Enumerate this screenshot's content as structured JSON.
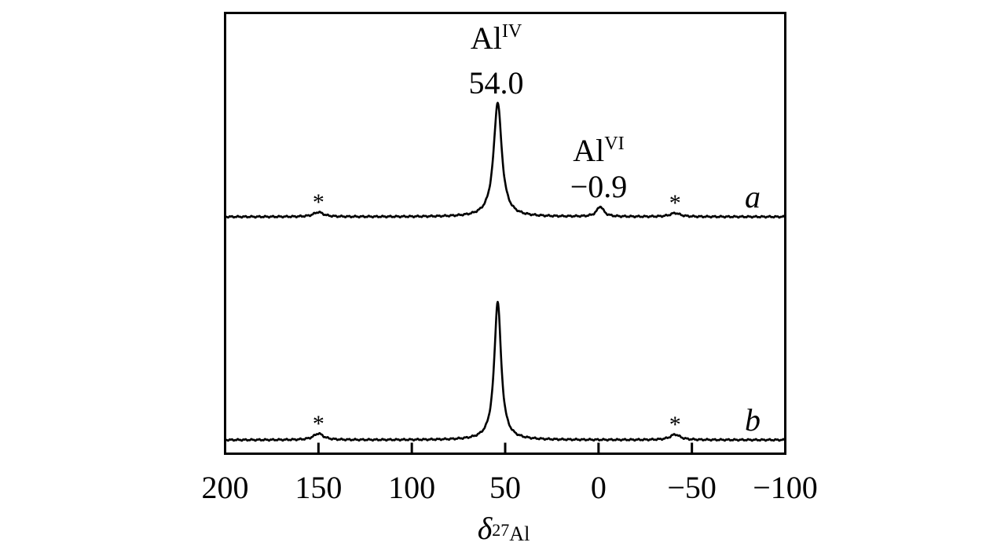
{
  "chart_data": {
    "type": "line",
    "x_axis": {
      "label_symbol": "δ",
      "label_superscript": "27",
      "label_subscript": "Al",
      "range": [
        200,
        -100
      ],
      "reversed": true,
      "ticks": [
        200,
        150,
        100,
        50,
        0,
        -50,
        -100
      ],
      "tick_labels": [
        "200",
        "150",
        "100",
        "50",
        "0",
        "−50",
        "−100"
      ]
    },
    "y_axis": {
      "label": "",
      "ticks": []
    },
    "grid": false,
    "series": [
      {
        "name": "a",
        "baseline": 0.04,
        "peaks": [
          {
            "x": 54.0,
            "height": 0.62,
            "width": 2.6
          },
          {
            "x": -0.9,
            "height": 0.055,
            "width": 2.2
          },
          {
            "x": 150,
            "height": 0.025,
            "width": 3.2
          },
          {
            "x": -41,
            "height": 0.02,
            "width": 3.2
          }
        ]
      },
      {
        "name": "b",
        "baseline": 0.04,
        "peaks": [
          {
            "x": 54.0,
            "height": 0.76,
            "width": 2.2
          },
          {
            "x": 150,
            "height": 0.035,
            "width": 3.2
          },
          {
            "x": -41,
            "height": 0.03,
            "width": 3.2
          }
        ]
      }
    ],
    "annotations": [
      {
        "id": "al4",
        "label": "Al",
        "superscript": "IV",
        "value": "54.0",
        "x": 54.0
      },
      {
        "id": "al6",
        "label": "Al",
        "superscript": "VI",
        "value": "−0.9",
        "x": -0.9
      }
    ],
    "spinning_sideband_marker": "*",
    "sidebands": [
      {
        "series": "a",
        "x": 150
      },
      {
        "series": "a",
        "x": -41
      },
      {
        "series": "b",
        "x": 150
      },
      {
        "series": "b",
        "x": -41
      }
    ]
  }
}
